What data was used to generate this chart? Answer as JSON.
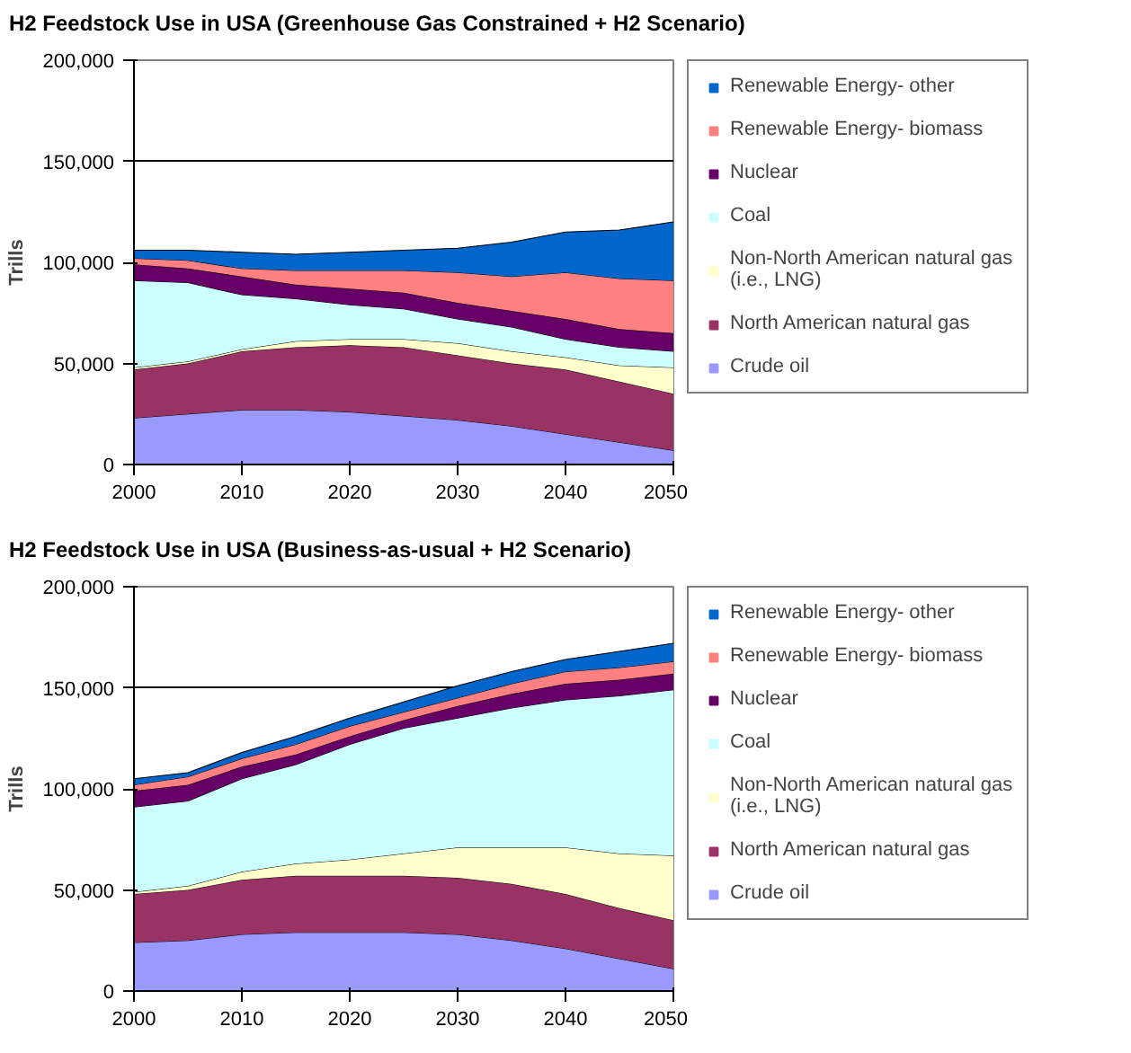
{
  "chart_data": [
    {
      "type": "area",
      "stacked": true,
      "title": "H2 Feedstock Use in USA (Greenhouse Gas  Constrained + H2 Scenario)",
      "ylabel": "Trills",
      "x": [
        2000,
        2005,
        2010,
        2015,
        2020,
        2025,
        2030,
        2035,
        2040,
        2045,
        2050
      ],
      "xlim": [
        2000,
        2050
      ],
      "xticks": [
        2000,
        2010,
        2020,
        2030,
        2040,
        2050
      ],
      "ylim": [
        0,
        200000
      ],
      "yticks": [
        {
          "value": 0,
          "label": "0"
        },
        {
          "value": 50000,
          "label": "50,000"
        },
        {
          "value": 100000,
          "label": "100,000"
        },
        {
          "value": 150000,
          "label": "150,000"
        },
        {
          "value": 200000,
          "label": "200,000"
        }
      ],
      "grid": "y",
      "legend": "right",
      "series": [
        {
          "name": "Crude oil",
          "color": "#9999ff",
          "values": [
            23000,
            25000,
            27000,
            27000,
            26000,
            24000,
            22000,
            19000,
            15000,
            11000,
            7000
          ]
        },
        {
          "name": "North American natural gas",
          "color": "#993366",
          "values": [
            24000,
            25000,
            29000,
            31000,
            33000,
            34000,
            32000,
            31000,
            32000,
            30000,
            28000
          ]
        },
        {
          "name": "Non-North American natural gas (i.e., LNG)",
          "color": "#ffffcc",
          "values": [
            1000,
            1000,
            1000,
            3000,
            3000,
            4000,
            6000,
            6000,
            6000,
            8000,
            13000
          ]
        },
        {
          "name": "Coal",
          "color": "#ccffff",
          "values": [
            43000,
            39000,
            27000,
            21000,
            17000,
            15000,
            12000,
            12000,
            9000,
            9000,
            8000
          ]
        },
        {
          "name": "Nuclear",
          "color": "#660066",
          "values": [
            8000,
            7000,
            9000,
            7000,
            8000,
            8000,
            8000,
            8000,
            10000,
            9000,
            9000
          ]
        },
        {
          "name": "Renewable Energy- biomass",
          "color": "#ff8080",
          "values": [
            3000,
            4000,
            4000,
            7000,
            9000,
            11000,
            15000,
            17000,
            23000,
            25000,
            26000
          ]
        },
        {
          "name": "Renewable Energy- other",
          "color": "#0066cc",
          "values": [
            4000,
            5000,
            8000,
            8000,
            9000,
            10000,
            12000,
            17000,
            20000,
            24000,
            29000
          ]
        }
      ]
    },
    {
      "type": "area",
      "stacked": true,
      "title": "H2 Feedstock Use in USA (Business-as-usual + H2 Scenario)",
      "ylabel": "Trills",
      "x": [
        2000,
        2005,
        2010,
        2015,
        2020,
        2025,
        2030,
        2035,
        2040,
        2045,
        2050
      ],
      "xlim": [
        2000,
        2050
      ],
      "xticks": [
        2000,
        2010,
        2020,
        2030,
        2040,
        2050
      ],
      "ylim": [
        0,
        200000
      ],
      "yticks": [
        {
          "value": 0,
          "label": "0"
        },
        {
          "value": 50000,
          "label": "50,000"
        },
        {
          "value": 100000,
          "label": "100,000"
        },
        {
          "value": 150000,
          "label": "150,000"
        },
        {
          "value": 200000,
          "label": "200,000"
        }
      ],
      "grid": "y",
      "legend": "right",
      "series": [
        {
          "name": "Crude oil",
          "color": "#9999ff",
          "values": [
            24000,
            25000,
            28000,
            29000,
            29000,
            29000,
            28000,
            25000,
            21000,
            16000,
            11000
          ]
        },
        {
          "name": "North American natural gas",
          "color": "#993366",
          "values": [
            24000,
            25000,
            27000,
            28000,
            28000,
            28000,
            28000,
            28000,
            27000,
            25000,
            24000
          ]
        },
        {
          "name": "Non-North American natural gas (i.e., LNG)",
          "color": "#ffffcc",
          "values": [
            1000,
            2000,
            4000,
            6000,
            8000,
            11000,
            15000,
            18000,
            23000,
            27000,
            32000
          ]
        },
        {
          "name": "Coal",
          "color": "#ccffff",
          "values": [
            42000,
            42000,
            46000,
            49000,
            57000,
            62000,
            64000,
            69000,
            73000,
            78000,
            82000
          ]
        },
        {
          "name": "Nuclear",
          "color": "#660066",
          "values": [
            8000,
            8000,
            6000,
            5000,
            4000,
            4000,
            6000,
            7000,
            8000,
            8000,
            8000
          ]
        },
        {
          "name": "Renewable Energy- biomass",
          "color": "#ff8080",
          "values": [
            3000,
            4000,
            4000,
            5000,
            5000,
            4000,
            4000,
            5000,
            6000,
            6000,
            6000
          ]
        },
        {
          "name": "Renewable Energy- other",
          "color": "#0066cc",
          "values": [
            3000,
            2000,
            3000,
            4000,
            4000,
            5000,
            6000,
            6000,
            6000,
            8000,
            9000
          ]
        }
      ]
    }
  ]
}
